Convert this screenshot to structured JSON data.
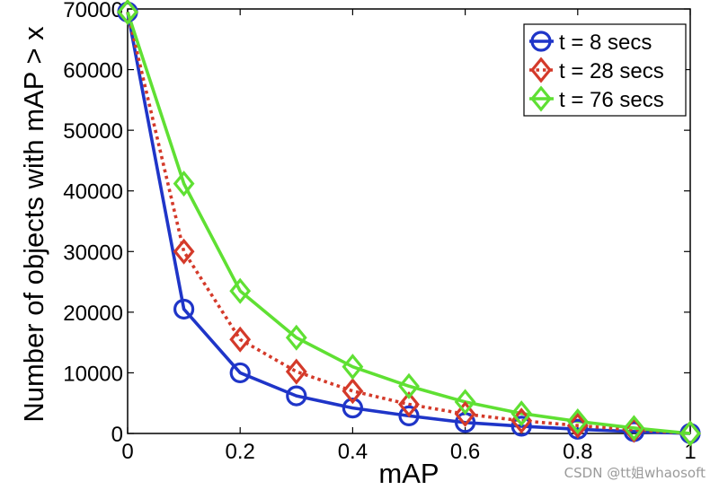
{
  "chart_data": {
    "type": "line",
    "title": "",
    "xlabel": "mAP",
    "ylabel": "Number of objects with mAP > x",
    "xlim": [
      0,
      1
    ],
    "ylim": [
      0,
      70000
    ],
    "xticks": [
      0,
      0.2,
      0.4,
      0.6,
      0.8,
      1
    ],
    "xtick_labels": [
      "0",
      "0.2",
      "0.4",
      "0.6",
      "0.8",
      "1"
    ],
    "yticks": [
      0,
      10000,
      20000,
      30000,
      40000,
      50000,
      60000,
      70000
    ],
    "ytick_labels": [
      "0",
      "10000",
      "20000",
      "30000",
      "40000",
      "50000",
      "60000",
      "70000"
    ],
    "grid": false,
    "legend_position": "top-right",
    "x": [
      0,
      0.1,
      0.2,
      0.3,
      0.4,
      0.5,
      0.6,
      0.7,
      0.8,
      0.9,
      1.0
    ],
    "series": [
      {
        "name": "t = 8 secs",
        "color": "#1f35c8",
        "marker": "circle",
        "line_style": "solid",
        "values": [
          69500,
          20500,
          10000,
          6200,
          4200,
          2900,
          1800,
          1200,
          700,
          300,
          0
        ]
      },
      {
        "name": "t = 28 secs",
        "color": "#d43a2a",
        "marker": "diamond",
        "line_style": "dotted",
        "values": [
          69500,
          30000,
          15500,
          10200,
          7000,
          4800,
          3200,
          2100,
          1300,
          600,
          0
        ]
      },
      {
        "name": "t = 76 secs",
        "color": "#5fe033",
        "marker": "diamond",
        "line_style": "solid",
        "values": [
          69500,
          41200,
          23500,
          15800,
          11000,
          7800,
          5200,
          3300,
          2000,
          900,
          0
        ]
      }
    ]
  },
  "watermark": "CSDN @tt姐whaosoft"
}
